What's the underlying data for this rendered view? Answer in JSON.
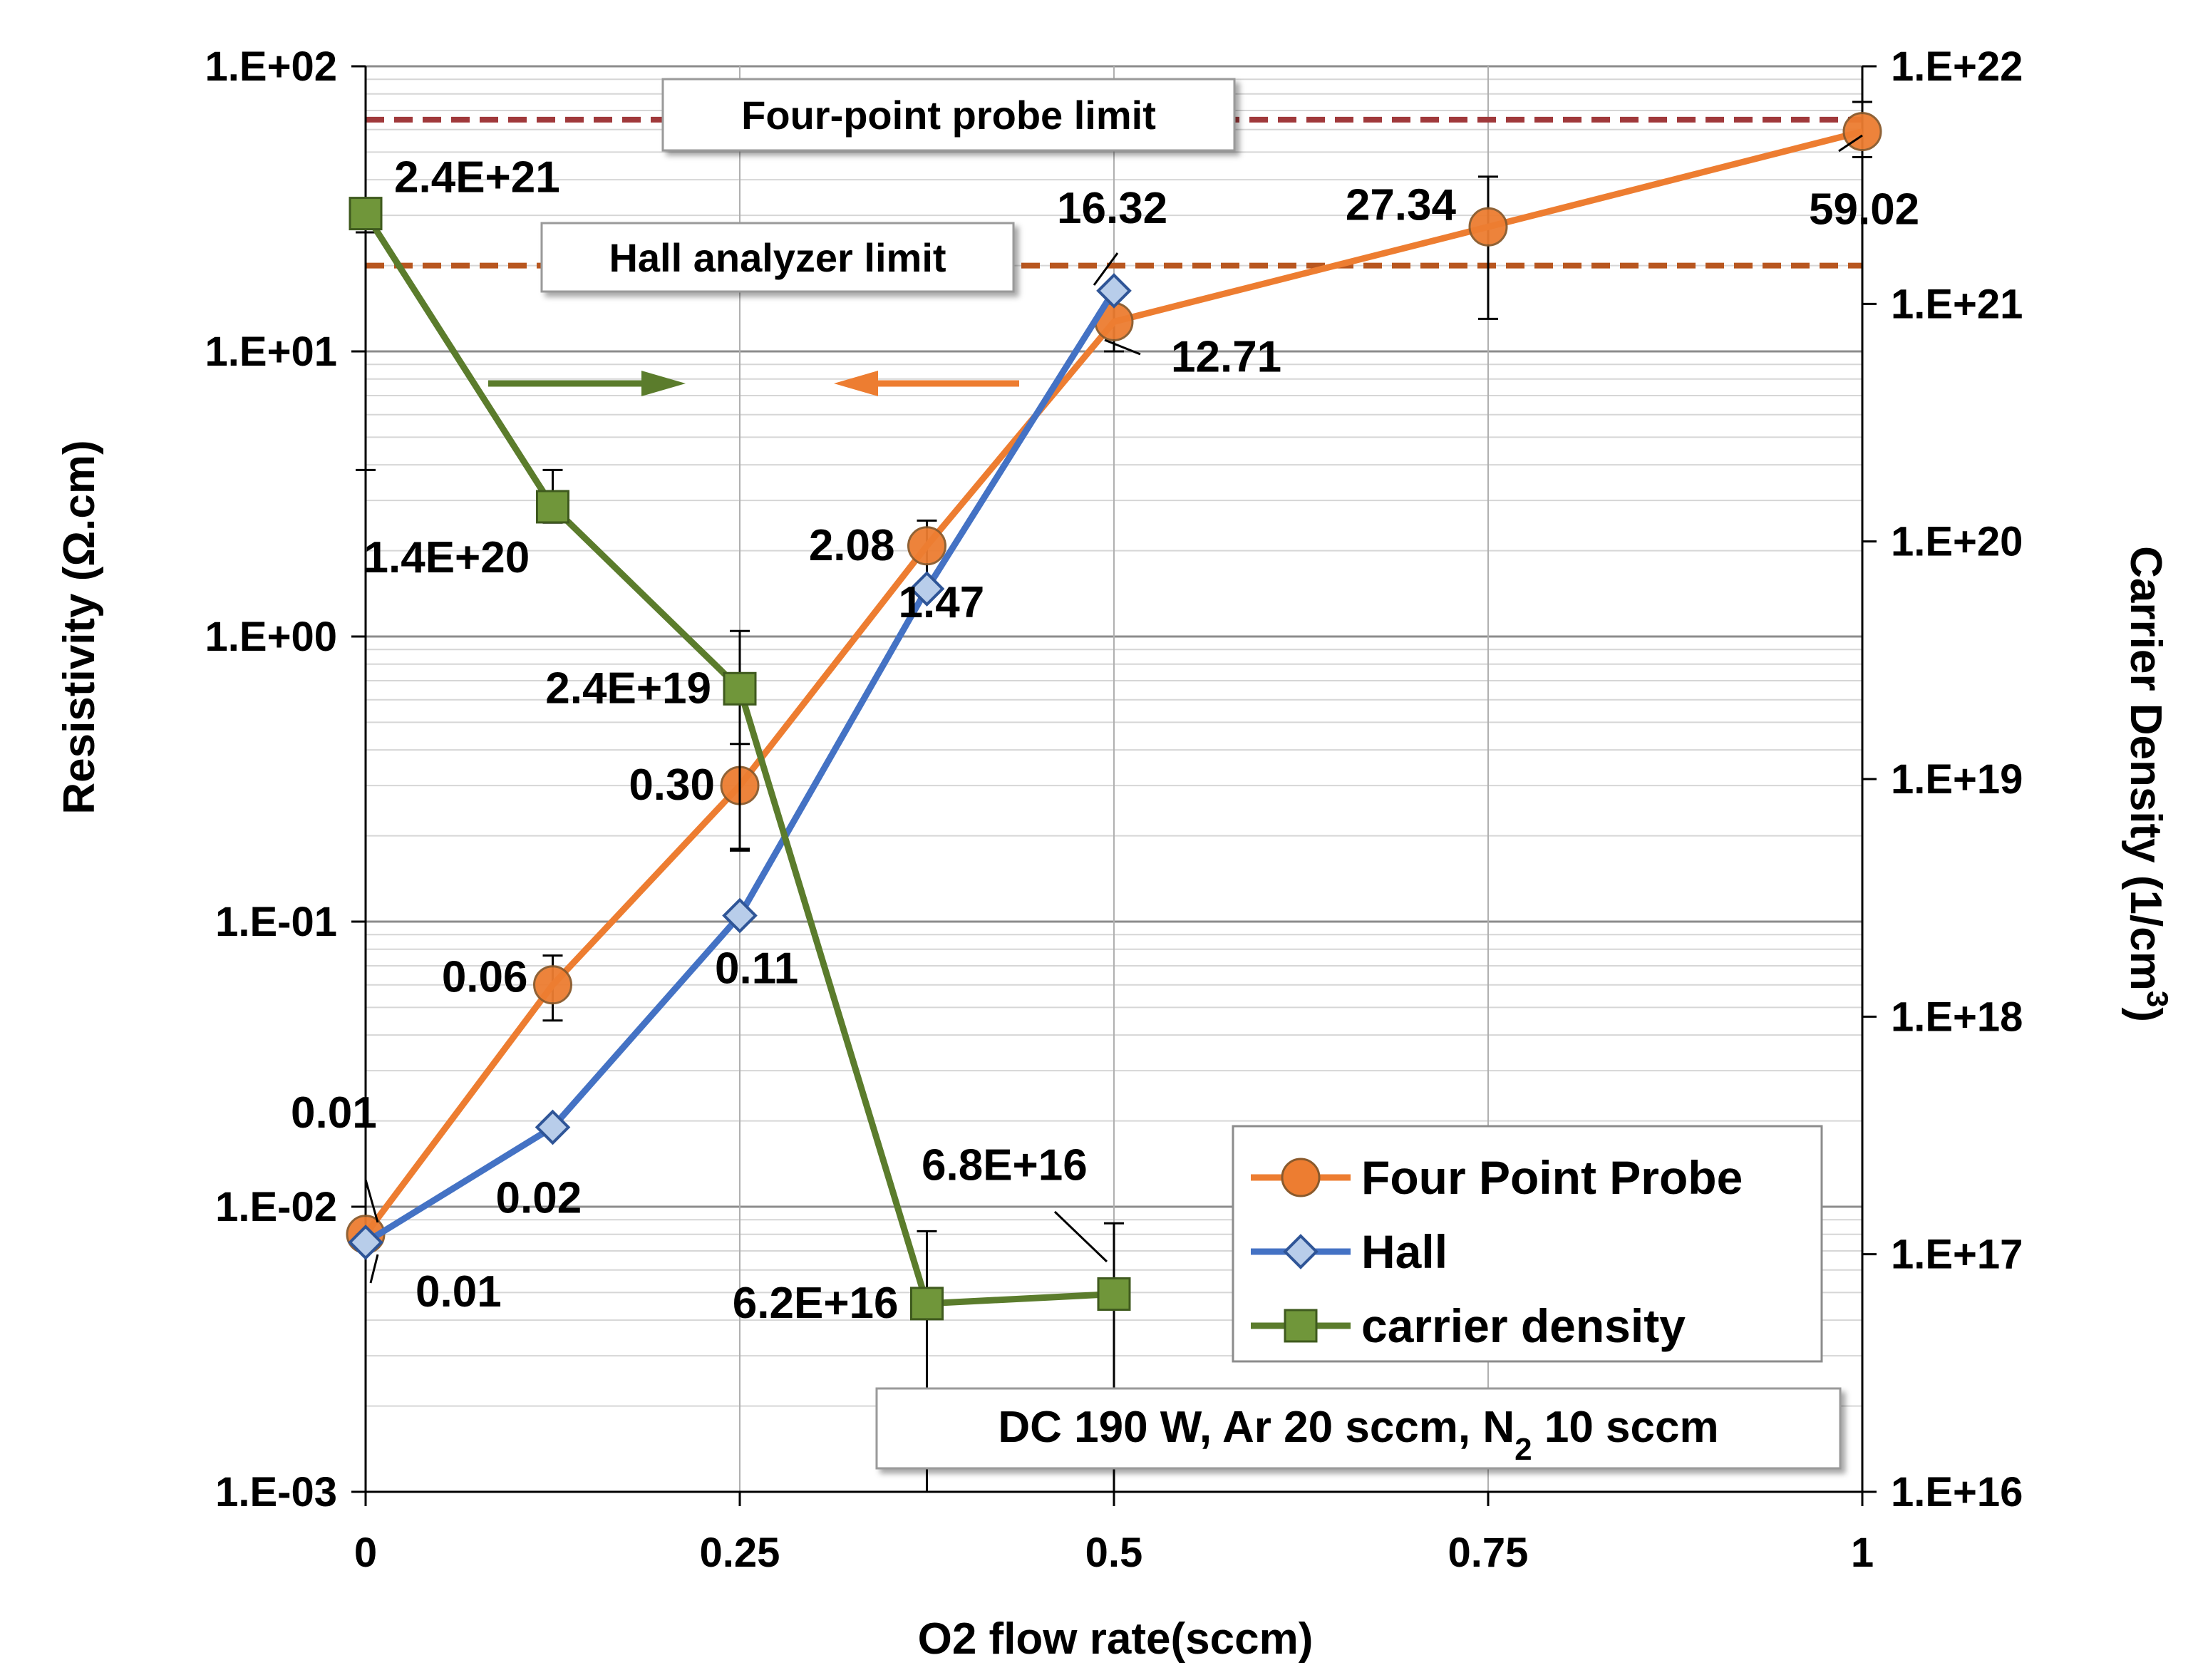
{
  "chart_data": {
    "type": "line",
    "x": [
      0,
      0.125,
      0.25,
      0.375,
      0.5,
      0.75,
      1
    ],
    "x_ticks": [
      0,
      0.25,
      0.5,
      0.75,
      1
    ],
    "x_tick_labels": [
      "0",
      "0.25",
      "0.5",
      "0.75",
      "1"
    ],
    "xlim": [
      0,
      1
    ],
    "xlabel": "O2 flow rate(sccm)",
    "y_left": {
      "label": "Resistivity (Ω.cm)",
      "scale": "log",
      "lim": [
        0.001,
        100
      ],
      "tick_values": [
        0.001,
        0.01,
        0.1,
        1,
        10,
        100
      ],
      "tick_labels": [
        "1.E-03",
        "1.E-02",
        "1.E-01",
        "1.E+00",
        "1.E+01",
        "1.E+02"
      ]
    },
    "y_right": {
      "label_main": "Carrier Density (1/cm",
      "label_sup": "3",
      "label_end": ")",
      "scale": "log",
      "lim": [
        1e+16,
        1e+22
      ],
      "tick_values": [
        1e+16,
        1e+17,
        1e+18,
        1e+19,
        1e+20,
        1e+21,
        1e+22
      ],
      "tick_labels": [
        "1.E+16",
        "1.E+17",
        "1.E+18",
        "1.E+19",
        "1.E+20",
        "1.E+21",
        "1.E+22"
      ]
    },
    "grid": true,
    "legend_position": "lower-right",
    "series": [
      {
        "name": "Four Point Probe",
        "axis": "left",
        "color": "#ED7D31",
        "marker": "circle",
        "x": [
          0,
          0.125,
          0.25,
          0.375,
          0.5,
          0.75,
          1
        ],
        "y": [
          0.008,
          0.06,
          0.3,
          2.08,
          12.71,
          27.34,
          59.02
        ],
        "err_low": [
          0.008,
          0.045,
          0.18,
          1.55,
          10.0,
          13.0,
          48.0
        ],
        "err_high": [
          0.008,
          0.076,
          0.42,
          2.55,
          15.5,
          41.0,
          75.0
        ],
        "labels": [
          "0.01",
          "0.06",
          "0.30",
          "2.08",
          "12.71",
          "27.34",
          "59.02"
        ]
      },
      {
        "name": "Hall",
        "axis": "left",
        "color": "#4472C4",
        "marker": "diamond",
        "x": [
          0,
          0.125,
          0.25,
          0.375,
          0.5
        ],
        "y": [
          0.0075,
          0.019,
          0.105,
          1.47,
          16.32
        ],
        "labels": [
          "0.01",
          "0.02",
          "0.11",
          "1.47",
          "16.32"
        ]
      },
      {
        "name": "carrier density",
        "axis": "right",
        "color": "#5B7C2C",
        "marker": "square",
        "x": [
          0,
          0.125,
          0.25,
          0.375,
          0.5
        ],
        "y": [
          2.4e+21,
          1.4e+20,
          2.4e+19,
          6.2e+16,
          6.8e+16
        ],
        "err_low": [
          2e+20,
          2e+20,
          5e+18,
          1e+16,
          1e+16
        ],
        "err_high": [
          2e+21,
          1.2e+20,
          4.2e+19,
          1.25e+17,
          1.35e+17
        ],
        "labels": [
          "2.4E+21",
          "1.4E+20",
          "2.4E+19",
          "6.2E+16",
          "6.8E+16"
        ]
      }
    ],
    "reference_lines": [
      {
        "name": "Four-point probe limit",
        "y": 65,
        "color": "#A0393B"
      },
      {
        "name": "Hall analyzer limit",
        "y": 20,
        "color": "#B8561F"
      }
    ],
    "annotations": {
      "condition_box": {
        "text_before": "DC 190 W, Ar 20 sccm, N",
        "subscript": "2",
        "text_after": " 10 sccm"
      }
    }
  }
}
